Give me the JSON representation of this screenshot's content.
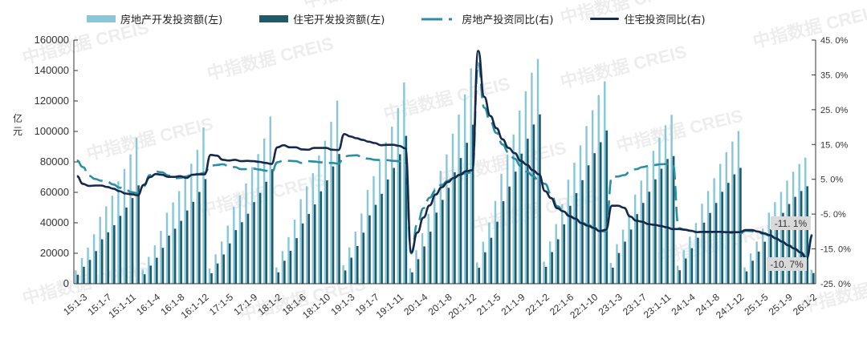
{
  "legend": {
    "items": [
      {
        "label": "房地产开发投资额(左)",
        "type": "bar",
        "color": "#86c8da"
      },
      {
        "label": "住宅开发投资额(左)",
        "type": "bar",
        "color": "#1e5a6a"
      },
      {
        "label": "房地产投资同比(右)",
        "type": "dashed-line",
        "color": "#2a8fa3"
      },
      {
        "label": "住宅投资同比(右)",
        "type": "line",
        "color": "#16294a"
      }
    ]
  },
  "axes": {
    "left_label": "亿元",
    "left_label_line1": "亿",
    "left_label_line2": "元",
    "left_ticks": [
      "0",
      "20000",
      "40000",
      "60000",
      "80000",
      "100000",
      "120000",
      "140000",
      "160000"
    ],
    "right_ticks": [
      "-25.0%",
      "-15.0%",
      "-5.0%",
      "5.0%",
      "15.0%",
      "25.0%",
      "35.0%",
      "45.0%"
    ]
  },
  "annotations": {
    "residential_last": "-11.1%",
    "realestate_last": "-10.7%"
  },
  "watermark": "中指数据 CREIS",
  "chart_data": {
    "type": "bar+line",
    "title": "",
    "ylabel_left": "亿元",
    "ylim_left": [
      0,
      160000
    ],
    "ylim_right": [
      -25,
      45
    ],
    "grid": false,
    "legend_position": "top",
    "x_tick_labels": [
      "15:1-3",
      "15:1-7",
      "15:1-11",
      "16:1-4",
      "16:1-8",
      "16:1-12",
      "17:1-5",
      "17:1-9",
      "18:1-2",
      "18:1-6",
      "18:1-10",
      "19:1-3",
      "19:1-7",
      "19:1-11",
      "20:1-4",
      "20:1-8",
      "20:1-12",
      "21:1-5",
      "21:1-9",
      "22:1-2",
      "22:1-6",
      "22:1-10",
      "23:1-3",
      "23:1-7",
      "23:1-11",
      "24:1-4",
      "24:1-8",
      "24:1-12",
      "25:1-5",
      "25:1-9",
      "26:1-2"
    ],
    "categories": [
      "15:1-2",
      "15:1-3",
      "15:1-4",
      "15:1-5",
      "15:1-6",
      "15:1-7",
      "15:1-8",
      "15:1-9",
      "15:1-10",
      "15:1-11",
      "15:1-12",
      "16:1-2",
      "16:1-3",
      "16:1-4",
      "16:1-5",
      "16:1-6",
      "16:1-7",
      "16:1-8",
      "16:1-9",
      "16:1-10",
      "16:1-11",
      "16:1-12",
      "17:1-2",
      "17:1-3",
      "17:1-4",
      "17:1-5",
      "17:1-6",
      "17:1-7",
      "17:1-8",
      "17:1-9",
      "17:1-10",
      "17:1-11",
      "17:1-12",
      "18:1-2",
      "18:1-3",
      "18:1-4",
      "18:1-5",
      "18:1-6",
      "18:1-7",
      "18:1-8",
      "18:1-9",
      "18:1-10",
      "18:1-11",
      "18:1-12",
      "19:1-2",
      "19:1-3",
      "19:1-4",
      "19:1-5",
      "19:1-6",
      "19:1-7",
      "19:1-8",
      "19:1-9",
      "19:1-10",
      "19:1-11",
      "19:1-12",
      "20:1-2",
      "20:1-3",
      "20:1-4",
      "20:1-5",
      "20:1-6",
      "20:1-7",
      "20:1-8",
      "20:1-9",
      "20:1-10",
      "20:1-11",
      "20:1-12",
      "21:1-2",
      "21:1-3",
      "21:1-4",
      "21:1-5",
      "21:1-6",
      "21:1-7",
      "21:1-8",
      "21:1-9",
      "21:1-10",
      "21:1-11",
      "21:1-12",
      "22:1-2",
      "22:1-3",
      "22:1-4",
      "22:1-5",
      "22:1-6",
      "22:1-7",
      "22:1-8",
      "22:1-9",
      "22:1-10",
      "22:1-11",
      "22:1-12",
      "23:1-2",
      "23:1-3",
      "23:1-4",
      "23:1-5",
      "23:1-6",
      "23:1-7",
      "23:1-8",
      "23:1-9",
      "23:1-10",
      "23:1-11",
      "23:1-12",
      "24:1-2",
      "24:1-3",
      "24:1-4",
      "24:1-5",
      "24:1-6",
      "24:1-7",
      "24:1-8",
      "24:1-9",
      "24:1-10",
      "24:1-11",
      "24:1-12",
      "25:1-2",
      "25:1-3",
      "25:1-4",
      "25:1-5",
      "25:1-6",
      "25:1-7",
      "25:1-8",
      "25:1-9",
      "25:1-10",
      "25:1-11",
      "25:1-12",
      "26:1-2"
    ],
    "series": [
      {
        "name": "房地产开发投资额(左)",
        "type": "bar",
        "axis": "left",
        "color": "#86c8da",
        "values": [
          8786,
          16914,
          23669,
          32477,
          43955,
          50795,
          57773,
          67157,
          75390,
          84955,
          95979,
          9252,
          17677,
          25196,
          34769,
          46631,
          53334,
          60853,
          70600,
          78758,
          87979,
          102581,
          10024,
          19292,
          27732,
          38133,
          50610,
          57998,
          65809,
          76598,
          85137,
          95298,
          109799,
          10726,
          21493,
          30592,
          42024,
          55531,
          63977,
          72585,
          84265,
          93876,
          106282,
          120264,
          12090,
          23803,
          34217,
          46075,
          61609,
          70665,
          80408,
          92939,
          103087,
          115233,
          132194,
          10115,
          21963,
          33103,
          45920,
          62780,
          74121,
          84903,
          98510,
          111103,
          124304,
          141443,
          13986,
          27576,
          40240,
          54318,
          72179,
          84895,
          98011,
          113772,
          126346,
          138556,
          147602,
          14499,
          27765,
          39154,
          52134,
          68314,
          79462,
          90809,
          103559,
          113945,
          123863,
          132895,
          13669,
          25974,
          35514,
          45701,
          58550,
          67717,
          76900,
          87269,
          95922,
          104045,
          110913,
          11842,
          22082,
          30928,
          39883,
          52529,
          60877,
          69284,
          78680,
          86309,
          93368,
          100280,
          10720,
          19904,
          27730,
          36234,
          46658,
          53580,
          60309,
          67706,
          73563,
          78591,
          82788,
          9200
        ]
      },
      {
        "name": "住宅开发投资额(左)",
        "type": "bar",
        "axis": "left",
        "color": "#1e5a6a",
        "values": [
          5911,
          11147,
          15644,
          21428,
          29176,
          33730,
          38397,
          44559,
          50011,
          56250,
          64595,
          6183,
          11893,
          17036,
          23546,
          31591,
          36138,
          41283,
          48078,
          53782,
          60286,
          68704,
          6850,
          13294,
          19201,
          26479,
          35200,
          40405,
          45951,
          53580,
          59681,
          66951,
          75148,
          7453,
          15062,
          21603,
          29926,
          39561,
          45796,
          52075,
          60672,
          67875,
          77025,
          85192,
          8682,
          17080,
          24742,
          33512,
          44906,
          51800,
          59014,
          68440,
          76031,
          85013,
          97071,
          7453,
          16100,
          24488,
          34156,
          46656,
          55058,
          62965,
          73174,
          82528,
          92532,
          104446,
          10453,
          20622,
          30167,
          40700,
          54178,
          63804,
          73605,
          85368,
          95218,
          104553,
          111173,
          11050,
          20761,
          29201,
          38957,
          51172,
          59518,
          67996,
          77750,
          85723,
          92920,
          100646,
          10560,
          20157,
          27629,
          35595,
          45701,
          53054,
          60407,
          68538,
          75483,
          81894,
          83820,
          8868,
          16547,
          23320,
          30226,
          40115,
          46474,
          53015,
          60362,
          66239,
          71794,
          76040,
          8094,
          15078,
          21128,
          27568,
          35770,
          41189,
          46512,
          52327,
          57016,
          60882,
          64000,
          7000
        ]
      },
      {
        "name": "房地产投资同比(右)",
        "type": "dashed-line",
        "axis": "right",
        "color": "#2a8fa3",
        "values": [
          10.4,
          8.5,
          6.0,
          5.1,
          4.6,
          4.3,
          3.5,
          2.6,
          2.0,
          1.3,
          1.0,
          3.0,
          6.2,
          7.2,
          7.0,
          6.1,
          5.3,
          5.4,
          5.8,
          6.6,
          6.5,
          6.9,
          8.9,
          9.1,
          9.3,
          8.8,
          8.5,
          7.9,
          7.9,
          8.1,
          7.8,
          7.5,
          7.0,
          9.9,
          10.4,
          10.3,
          10.2,
          9.7,
          10.2,
          10.1,
          9.9,
          9.7,
          9.7,
          9.5,
          11.6,
          11.8,
          11.9,
          11.2,
          10.9,
          10.6,
          10.5,
          10.5,
          10.3,
          10.2,
          9.9,
          -16.3,
          -7.7,
          -3.3,
          -0.3,
          1.9,
          3.4,
          4.6,
          5.6,
          6.3,
          6.8,
          7.0,
          38.3,
          25.6,
          21.6,
          18.3,
          15.0,
          12.7,
          10.9,
          8.8,
          7.2,
          6.0,
          4.4,
          3.7,
          0.7,
          -2.7,
          -4.0,
          -5.4,
          -6.4,
          -7.4,
          -8.0,
          -8.8,
          -9.8,
          -10.0,
          5.7,
          5.8,
          6.2,
          7.2,
          7.9,
          8.5,
          8.8,
          9.1,
          9.3,
          9.4,
          9.6,
          -9.0,
          -9.5,
          -9.8,
          -10.1,
          -10.1,
          -10.2,
          -10.2,
          -10.1,
          -10.3,
          -10.4,
          -10.6,
          -9.8,
          -9.9,
          -10.3,
          -10.7,
          -11.2,
          -12.0,
          -12.9,
          -13.9,
          -14.7,
          -15.9,
          -17.2,
          -10.7
        ]
      },
      {
        "name": "住宅投资同比(右)",
        "type": "line",
        "axis": "right",
        "color": "#16294a",
        "values": [
          5.9,
          3.7,
          3.1,
          3.2,
          3.2,
          2.8,
          2.3,
          1.6,
          0.9,
          0.7,
          0.4,
          3.4,
          5.6,
          6.5,
          6.3,
          5.7,
          5.7,
          5.9,
          5.4,
          6.3,
          6.4,
          6.4,
          12.0,
          11.8,
          10.6,
          10.4,
          10.6,
          10.2,
          10.3,
          10.2,
          10.0,
          9.7,
          9.4,
          14.2,
          14.8,
          14.2,
          14.2,
          13.6,
          13.5,
          14.0,
          14.0,
          14.0,
          13.5,
          13.4,
          18.0,
          17.3,
          16.8,
          16.3,
          15.8,
          15.4,
          14.8,
          14.9,
          14.9,
          14.6,
          13.9,
          -16.0,
          -10.3,
          -6.0,
          -2.5,
          0.6,
          2.7,
          4.2,
          5.4,
          6.3,
          7.3,
          7.6,
          41.9,
          28.7,
          23.2,
          19.7,
          16.5,
          14.0,
          12.5,
          10.3,
          9.2,
          7.6,
          6.4,
          1.6,
          -0.4,
          -3.3,
          -4.2,
          -5.6,
          -6.3,
          -7.6,
          -8.3,
          -9.0,
          -9.9,
          -9.5,
          -2.6,
          -2.6,
          -3.2,
          -5.7,
          -6.9,
          -7.2,
          -7.9,
          -8.1,
          -8.4,
          -8.8,
          -9.3,
          -9.3,
          -9.5,
          -9.8,
          -10.2,
          -10.1,
          -10.1,
          -10.1,
          -10.1,
          -10.2,
          -10.2,
          -10.2,
          -9.6,
          -9.6,
          -10.0,
          -10.5,
          -11.1,
          -12.0,
          -12.9,
          -14.0,
          -14.9,
          -16.0,
          -17.8,
          -11.1
        ]
      }
    ]
  }
}
